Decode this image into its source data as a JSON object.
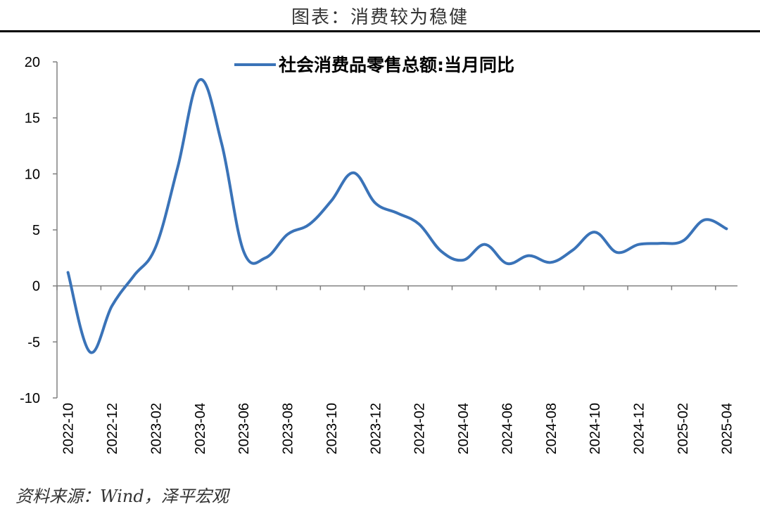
{
  "title": "图表：消费较为稳健",
  "source": "资料来源：Wind，泽平宏观",
  "colors": {
    "series": "#3a73b8",
    "axis": "#808080"
  },
  "chart_data": {
    "type": "line",
    "legend_position": "top-center",
    "grid": false,
    "ylim": [
      -10,
      20
    ],
    "yticks": [
      -10,
      -5,
      0,
      5,
      10,
      15,
      20
    ],
    "xtick_labels": [
      "2022-10",
      "2022-12",
      "2023-02",
      "2023-04",
      "2023-06",
      "2023-08",
      "2023-10",
      "2023-12",
      "2024-02",
      "2024-04",
      "2024-06",
      "2024-08",
      "2024-10",
      "2024-12",
      "2025-02",
      "2025-04"
    ],
    "x": [
      "2022-10",
      "2022-11",
      "2022-12",
      "2023-01",
      "2023-02",
      "2023-03",
      "2023-04",
      "2023-05",
      "2023-06",
      "2023-07",
      "2023-08",
      "2023-09",
      "2023-10",
      "2023-11",
      "2023-12",
      "2024-01",
      "2024-02",
      "2024-03",
      "2024-04",
      "2024-05",
      "2024-06",
      "2024-07",
      "2024-08",
      "2024-09",
      "2024-10",
      "2024-11",
      "2024-12",
      "2025-01",
      "2025-02",
      "2025-03",
      "2025-04"
    ],
    "series": [
      {
        "name": "社会消费品零售总额:当月同比",
        "values": [
          1.2,
          -5.9,
          -1.8,
          0.9,
          3.5,
          10.6,
          18.4,
          12.7,
          3.1,
          2.5,
          4.6,
          5.5,
          7.6,
          10.1,
          7.4,
          6.5,
          5.5,
          3.1,
          2.3,
          3.7,
          2.0,
          2.7,
          2.1,
          3.2,
          4.8,
          3.0,
          3.7,
          3.8,
          4.0,
          5.9,
          5.1
        ]
      }
    ]
  }
}
